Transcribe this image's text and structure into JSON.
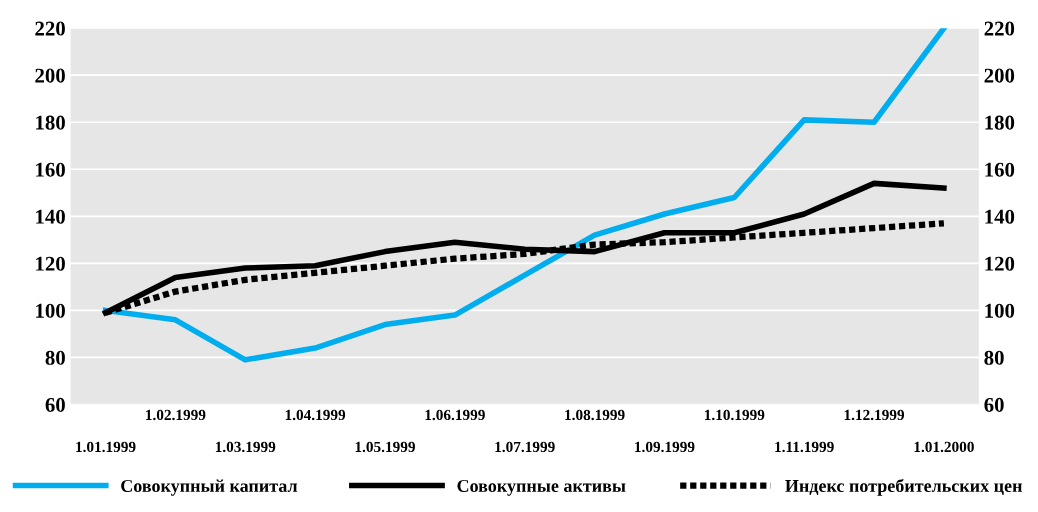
{
  "chart_data": {
    "type": "line",
    "categories": [
      "1.01.1999",
      "1.02.1999",
      "1.03.1999",
      "1.04.1999",
      "1.05.1999",
      "1.06.1999",
      "1.07.1999",
      "1.08.1999",
      "1.09.1999",
      "1.10.1999",
      "1.11.1999",
      "1.12.1999",
      "1.01.2000"
    ],
    "series": [
      {
        "name": "Совокупный капитал",
        "color": "#00aeef",
        "line_style": "solid",
        "values": [
          100,
          96,
          79,
          84,
          94,
          98,
          115,
          132,
          141,
          148,
          181,
          180,
          220
        ]
      },
      {
        "name": "Совокупные активы",
        "color": "#000000",
        "line_style": "solid",
        "values": [
          99,
          114,
          118,
          119,
          125,
          129,
          126,
          125,
          133,
          133,
          141,
          154,
          152
        ]
      },
      {
        "name": "Индекс потребительских цен",
        "color": "#000000",
        "line_style": "dotted",
        "values": [
          99,
          108,
          113,
          116,
          119,
          122,
          124,
          128,
          129,
          131,
          133,
          135,
          137
        ]
      }
    ],
    "ylim": [
      60,
      220
    ],
    "yticks": [
      60,
      80,
      100,
      120,
      140,
      160,
      180,
      200,
      220
    ],
    "y2lim": [
      60,
      220
    ],
    "y2ticks": [
      60,
      80,
      100,
      120,
      140,
      160,
      180,
      200,
      220
    ],
    "grid": true,
    "legend": "bottom",
    "marker": "none"
  }
}
